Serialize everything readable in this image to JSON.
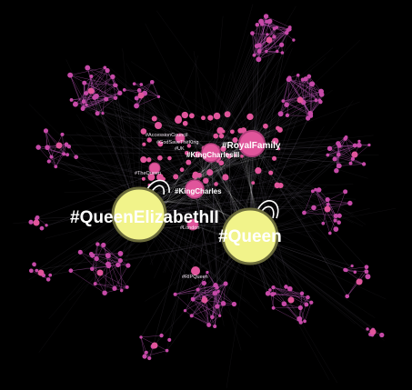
{
  "hubs": {
    "queen_elizabeth": "#QueenElizabethII",
    "queen": "#Queen",
    "royal_family": "#RoyalFamily",
    "king_charles_iii": "#KingCharlesIII",
    "king_charles": "#KingCharles"
  },
  "minor_labels": {
    "the_queen": "#TheQueen",
    "london": "#London",
    "uk": "#UK",
    "accession": "#AccessionCouncil",
    "god_save": "#GodSaveTheKing",
    "rip": "#RIPQueen"
  },
  "colors": {
    "background": "#000000",
    "hub_fill": "#f1f38a",
    "hub_ring": "#6b6b3c",
    "node_pink": "#e0559b",
    "node_ring": "#b03f7c",
    "small_node": "#c64aa8",
    "edge_faint": "#c7b7d9",
    "edge_pink": "#c85bc4"
  }
}
